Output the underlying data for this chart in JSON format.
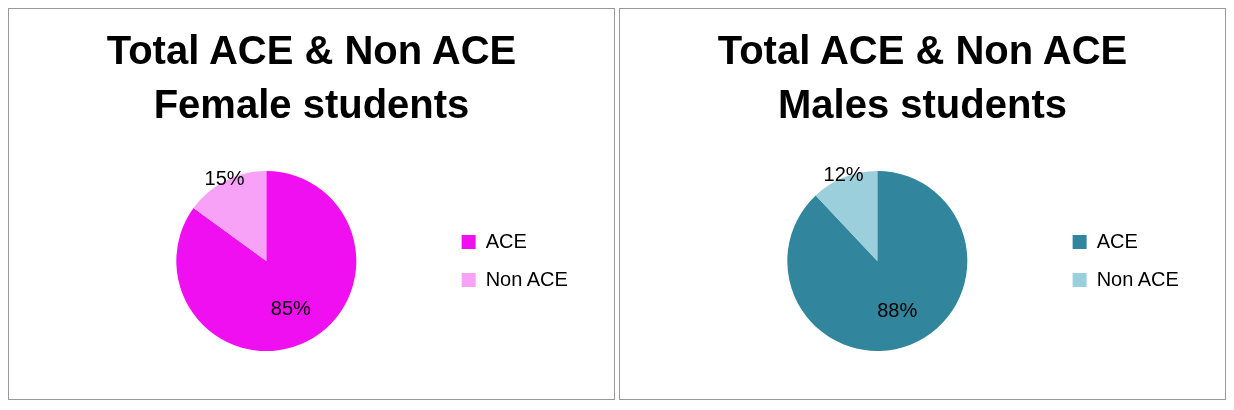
{
  "chart_data": [
    {
      "type": "pie",
      "title": "Total ACE & Non ACE Female students",
      "categories": [
        "ACE",
        "Non ACE"
      ],
      "values": [
        85,
        15
      ],
      "colors": [
        "#f00ff0",
        "#f7a1f7"
      ],
      "value_labels": [
        "85%",
        "15%"
      ],
      "legend": "right"
    },
    {
      "type": "pie",
      "title": "Total ACE & Non ACE Males students",
      "categories": [
        "ACE",
        "Non ACE"
      ],
      "values": [
        88,
        12
      ],
      "colors": [
        "#31859c",
        "#9ccfdc"
      ],
      "value_labels": [
        "88%",
        "12%"
      ],
      "legend": "right"
    }
  ]
}
